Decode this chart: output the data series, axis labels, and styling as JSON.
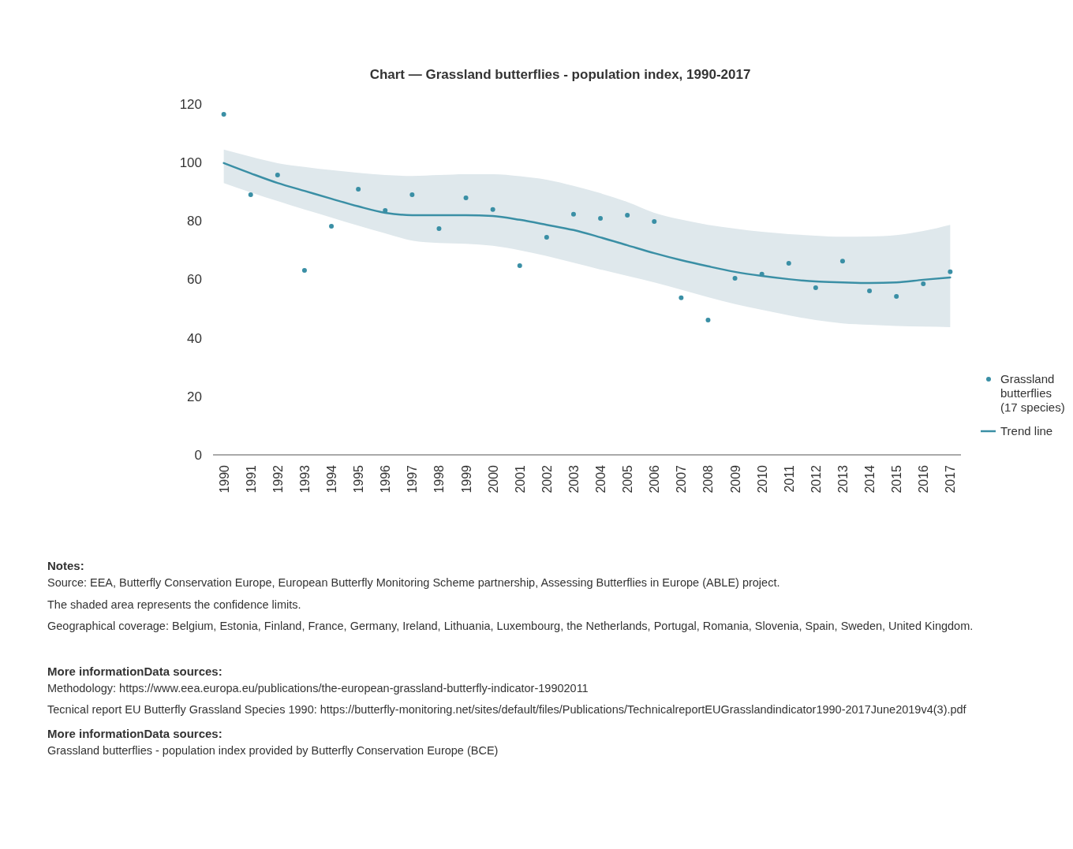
{
  "chart_data": {
    "type": "scatter",
    "title": "Chart — Grassland butterflies - population index, 1990-2017",
    "categories": [
      "1990",
      "1991",
      "1992",
      "1993",
      "1994",
      "1995",
      "1996",
      "1997",
      "1998",
      "1999",
      "2000",
      "2001",
      "2002",
      "2003",
      "2004",
      "2005",
      "2006",
      "2007",
      "2008",
      "2009",
      "2010",
      "2011",
      "2012",
      "2013",
      "2014",
      "2015",
      "2016",
      "2017"
    ],
    "ylim": [
      0,
      120
    ],
    "yticks": [
      0,
      20,
      40,
      60,
      80,
      100,
      120
    ],
    "grid": false,
    "legend": "right",
    "series": [
      {
        "name": "Grassland butterflies (17 species)",
        "marker": "circle",
        "color": "#3a8fa5",
        "values": [
          116.5,
          89,
          95.7,
          63.1,
          78.2,
          90.9,
          83.6,
          89,
          77.4,
          87.9,
          83.9,
          64.7,
          74.4,
          82.3,
          80.9,
          82,
          79.8,
          53.7,
          46.1,
          60.4,
          61.8,
          65.5,
          57.2,
          66.3,
          56.1,
          54.2,
          58.5,
          62.6
        ]
      },
      {
        "name": "Trend line",
        "type": "line",
        "color": "#3a8fa5",
        "line_style": "solid",
        "values": [
          99.8,
          96.3,
          93,
          90.3,
          87.6,
          85,
          82.8,
          82,
          82,
          82,
          81.7,
          80.4,
          78.7,
          76.9,
          74.4,
          71.7,
          69,
          66.6,
          64.5,
          62.6,
          61.2,
          60.1,
          59.3,
          59,
          58.8,
          59,
          59.9,
          60.7
        ],
        "lower": [
          93,
          89.8,
          86.8,
          83.9,
          81.2,
          78.4,
          75.8,
          73.3,
          72.5,
          72.2,
          71.5,
          70,
          68,
          65.7,
          63.4,
          61.2,
          59,
          56.5,
          53.9,
          51.6,
          49.6,
          47.7,
          46.1,
          45,
          44.5,
          44.1,
          43.9,
          43.7
        ],
        "upper": [
          104.4,
          102,
          99.8,
          98.5,
          97.4,
          96.5,
          95.7,
          95.4,
          95.7,
          96,
          96,
          95.3,
          94.1,
          92,
          89.5,
          86.5,
          82.8,
          80.5,
          78.7,
          77.4,
          76.3,
          75.5,
          75,
          74.6,
          74.7,
          75.2,
          76.6,
          78.7
        ]
      }
    ],
    "annotations": [
      "Notes:",
      "Source: EEA, Butterfly Conservation Europe, European Butterfly Monitoring Scheme partnership, Assessing Butterflies in Europe (ABLE) project.",
      "The  shaded area represents the confidence limits.",
      "Geographical coverage: Belgium, Estonia, Finland, France, Germany, Ireland, Lithuania, Luxembourg, the Netherlands, Portugal, Romania, Slovenia, Spain, Sweden, United Kingdom.",
      "More informationData sources:",
      "Methodology: https://www.eea.europa.eu/publications/the-european-grassland-butterfly-indicator-19902011",
      "Tecnical report EU Butterfly Grassland Species 1990: https://butterfly-monitoring.net/sites/default/files/Publications/TechnicalreportEUGrasslandindicator1990-2017June2019v4(3).pdf",
      "More informationData sources:",
      "Grassland butterflies - population index provided by Butterfly Conservation Europe (BCE)"
    ]
  }
}
